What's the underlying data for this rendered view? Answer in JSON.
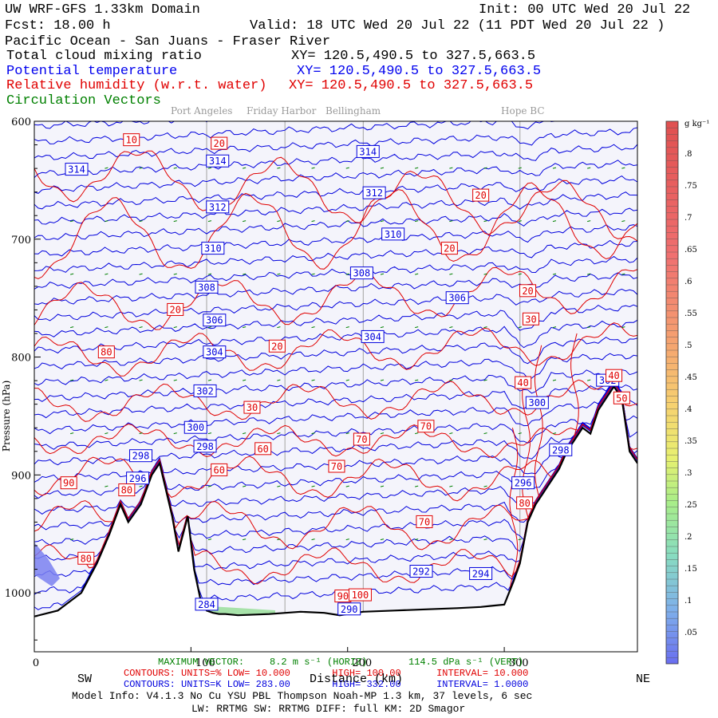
{
  "header": {
    "model": "UW WRF-GFS 1.33km Domain",
    "init": "Init: 00 UTC Wed 20 Jul 22",
    "fcst": "Fcst:    18.00 h",
    "valid": "Valid: 18 UTC Wed 20 Jul 22   (11 PDT Wed 20 Jul 22  )",
    "region": "Pacific Ocean - San Juans - Fraser River",
    "field1": "Total cloud mixing ratio",
    "xy1": "XY= 120.5,490.5 to 327.5,663.5",
    "field2": "Potential temperature",
    "xy2": "XY= 120.5,490.5 to 327.5,663.5",
    "field3": "Relative humidity (w.r.t. water)",
    "xy3": "XY= 120.5,490.5 to 327.5,663.5",
    "field4": "Circulation Vectors"
  },
  "places": {
    "p1": "Port Angeles",
    "p2": "Friday Harbor",
    "p3": "Bellingham",
    "p4": "Hope BC"
  },
  "colors": {
    "theta": "#0000dd",
    "rh": "#e00000",
    "vectors": "#008000",
    "terrain": "#000000",
    "plot_bg": "#f4f4fb"
  },
  "chart_data": {
    "type": "cross-section",
    "x_axis": {
      "label": "Distance (km)",
      "range": [
        0,
        385
      ],
      "ticks": [
        "0",
        "100",
        "200",
        "300"
      ],
      "tick_values": [
        0,
        100,
        200,
        300
      ],
      "left_end": "SW",
      "right_end": "NE"
    },
    "y_axis": {
      "label": "Pressure (hPa)",
      "range": [
        1050,
        600
      ],
      "ticks": [
        "600",
        "700",
        "800",
        "900",
        "1000"
      ],
      "tick_values": [
        600,
        700,
        800,
        900,
        1000
      ]
    },
    "location_lines_km": [
      110,
      160,
      210,
      310
    ],
    "terrain": {
      "x": [
        0,
        15,
        30,
        40,
        48,
        55,
        60,
        68,
        75,
        80,
        88,
        92,
        98,
        102,
        106,
        110,
        114,
        118,
        122,
        130,
        150,
        170,
        185,
        195,
        200,
        210,
        230,
        250,
        270,
        285,
        292,
        300,
        306,
        310,
        315,
        320,
        325,
        330,
        335,
        340,
        345,
        350,
        355,
        360,
        365,
        370,
        375,
        380,
        385
      ],
      "p": [
        1020,
        1015,
        1000,
        975,
        950,
        925,
        940,
        925,
        900,
        890,
        935,
        965,
        935,
        980,
        1005,
        1015,
        1017,
        1018,
        1018,
        1019,
        1018,
        1016,
        1017,
        1019,
        1018,
        1016,
        1015,
        1014,
        1013,
        1012,
        1011,
        1010,
        990,
        975,
        940,
        925,
        915,
        905,
        895,
        880,
        870,
        860,
        865,
        845,
        835,
        825,
        835,
        880,
        890
      ]
    },
    "theta_contours": {
      "units": "K",
      "low": "283.00",
      "high": "332.00",
      "interval": "1.0000",
      "labels": [
        {
          "v": "314",
          "x": 27,
          "p": 641
        },
        {
          "v": "314",
          "x": 117,
          "p": 634
        },
        {
          "v": "314",
          "x": 213,
          "p": 626
        },
        {
          "v": "312",
          "x": 117,
          "p": 673
        },
        {
          "v": "312",
          "x": 217,
          "p": 661
        },
        {
          "v": "310",
          "x": 114,
          "p": 708
        },
        {
          "v": "310",
          "x": 229,
          "p": 696
        },
        {
          "v": "308",
          "x": 110,
          "p": 741
        },
        {
          "v": "308",
          "x": 209,
          "p": 729
        },
        {
          "v": "306",
          "x": 115,
          "p": 769
        },
        {
          "v": "306",
          "x": 270,
          "p": 750
        },
        {
          "v": "304",
          "x": 115,
          "p": 796
        },
        {
          "v": "304",
          "x": 216,
          "p": 783
        },
        {
          "v": "302",
          "x": 109,
          "p": 829
        },
        {
          "v": "302",
          "x": 366,
          "p": 820
        },
        {
          "v": "300",
          "x": 103,
          "p": 860
        },
        {
          "v": "300",
          "x": 321,
          "p": 839
        },
        {
          "v": "298",
          "x": 109,
          "p": 876
        },
        {
          "v": "298",
          "x": 68,
          "p": 884
        },
        {
          "v": "298",
          "x": 336,
          "p": 879
        },
        {
          "v": "296",
          "x": 66,
          "p": 903
        },
        {
          "v": "296",
          "x": 312,
          "p": 907
        },
        {
          "v": "294",
          "x": 285,
          "p": 984
        },
        {
          "v": "292",
          "x": 247,
          "p": 982
        },
        {
          "v": "290",
          "x": 201,
          "p": 1014
        },
        {
          "v": "284",
          "x": 110,
          "p": 1010
        }
      ]
    },
    "rh_contours": {
      "units": "%",
      "low": "10.000",
      "high": "100.00",
      "interval": "10.000",
      "labels": [
        {
          "v": "10",
          "x": 62,
          "p": 616
        },
        {
          "v": "20",
          "x": 118,
          "p": 619
        },
        {
          "v": "20",
          "x": 285,
          "p": 663
        },
        {
          "v": "20",
          "x": 265,
          "p": 708
        },
        {
          "v": "20",
          "x": 315,
          "p": 744
        },
        {
          "v": "20",
          "x": 90,
          "p": 760
        },
        {
          "v": "20",
          "x": 155,
          "p": 791
        },
        {
          "v": "30",
          "x": 317,
          "p": 768
        },
        {
          "v": "30",
          "x": 139,
          "p": 843
        },
        {
          "v": "40",
          "x": 370,
          "p": 816
        },
        {
          "v": "40",
          "x": 312,
          "p": 822
        },
        {
          "v": "50",
          "x": 375,
          "p": 835
        },
        {
          "v": "60",
          "x": 146,
          "p": 878
        },
        {
          "v": "60",
          "x": 118,
          "p": 896
        },
        {
          "v": "70",
          "x": 209,
          "p": 870
        },
        {
          "v": "70",
          "x": 250,
          "p": 859
        },
        {
          "v": "70",
          "x": 193,
          "p": 893
        },
        {
          "v": "70",
          "x": 249,
          "p": 940
        },
        {
          "v": "80",
          "x": 46,
          "p": 796
        },
        {
          "v": "80",
          "x": 59,
          "p": 913
        },
        {
          "v": "80",
          "x": 313,
          "p": 924
        },
        {
          "v": "80",
          "x": 33,
          "p": 971
        },
        {
          "v": "90",
          "x": 22,
          "p": 907
        },
        {
          "v": "90",
          "x": 197,
          "p": 1003
        },
        {
          "v": "100",
          "x": 208,
          "p": 1002
        }
      ]
    },
    "vectors": {
      "label": "MAXIMUM VECTOR:",
      "horiz": "8.2 m s⁻¹ (HORIZ)",
      "vert": "114.5 dPa s⁻¹ (VERT)"
    },
    "colorbar": {
      "units": "g kg⁻¹",
      "ticks": [
        ".8",
        ".75",
        ".7",
        ".65",
        ".6",
        ".55",
        ".5",
        ".45",
        ".4",
        ".35",
        ".3",
        ".25",
        ".2",
        ".15",
        ".1",
        ".05"
      ],
      "tick_values": [
        0.8,
        0.75,
        0.7,
        0.65,
        0.6,
        0.55,
        0.5,
        0.45,
        0.4,
        0.35,
        0.3,
        0.25,
        0.2,
        0.15,
        0.1,
        0.05
      ],
      "range": [
        0.0,
        0.85
      ]
    }
  },
  "footer": {
    "contours_rh_label": "CONTOURS:  UNITS=%  LOW=",
    "contours_rh_high_label": "HIGH=",
    "contours_rh_int_label": "INTERVAL=",
    "contours_th_label": "CONTOURS:  UNITS=K  LOW=",
    "contours_th_high_label": "HIGH=",
    "contours_th_int_label": "INTERVAL=",
    "model_info": "Model Info: V4.1.3    No Cu    YSU PBL  Thompson     Noah-MP    1.3 km,   37 levels,    6 sec",
    "physics": "LW: RRTMG SW: RRTMG    DIFF: full    KM: 2D Smagor"
  }
}
